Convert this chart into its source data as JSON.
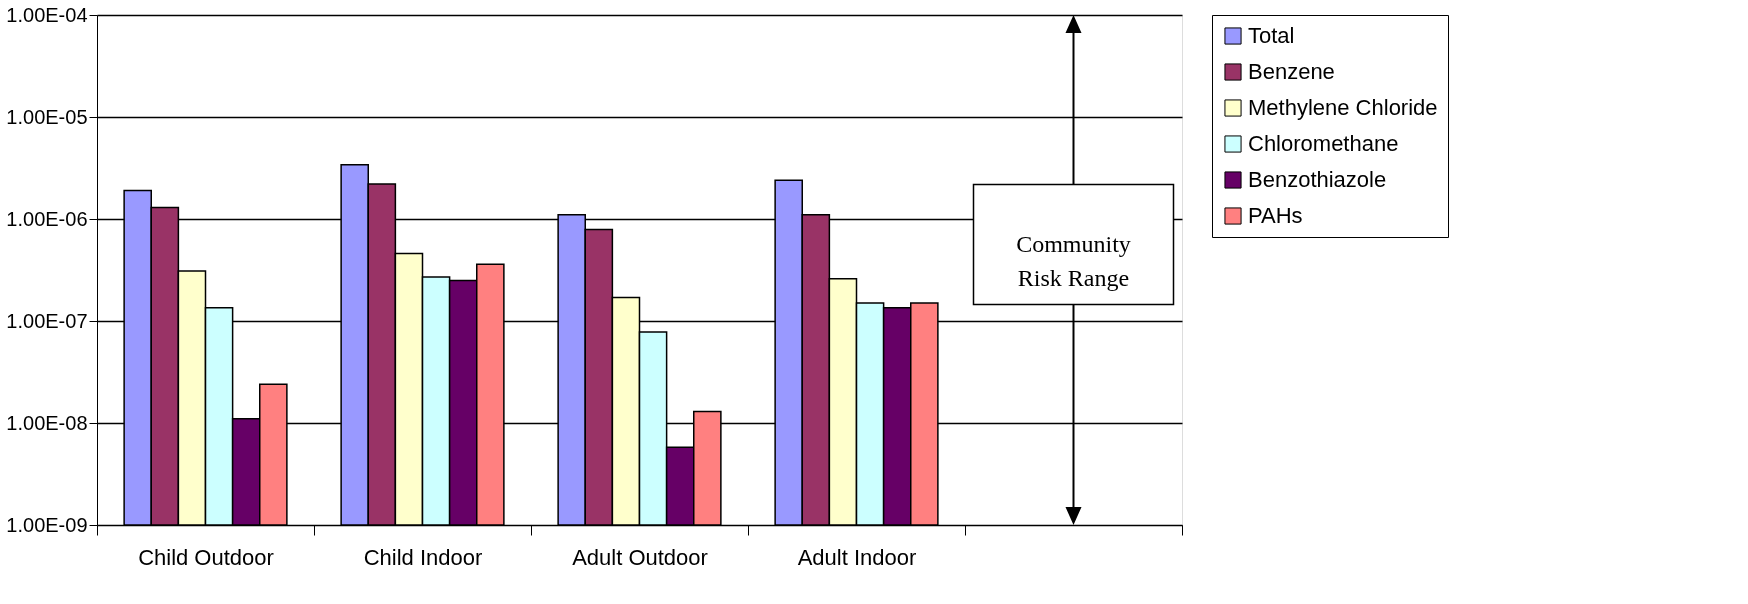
{
  "chart_data": {
    "type": "bar",
    "categories": [
      "Child Outdoor",
      "Child Indoor",
      "Adult Outdoor",
      "Adult Indoor",
      null
    ],
    "series": [
      {
        "name": "Total",
        "color": "#9999ff",
        "values": [
          1.9e-06,
          3.4e-06,
          1.1e-06,
          2.4e-06,
          null
        ]
      },
      {
        "name": "Benzene",
        "color": "#993366",
        "values": [
          1.3e-06,
          2.2e-06,
          7.9e-07,
          1.1e-06,
          null
        ]
      },
      {
        "name": "Methylene Chloride",
        "color": "#ffffcc",
        "values": [
          3.1e-07,
          4.6e-07,
          1.7e-07,
          2.6e-07,
          null
        ]
      },
      {
        "name": "Chloromethane",
        "color": "#ccffff",
        "values": [
          1.35e-07,
          2.7e-07,
          7.8e-08,
          1.5e-07,
          null
        ]
      },
      {
        "name": "Benzothiazole",
        "color": "#660066",
        "values": [
          1.1e-08,
          2.5e-07,
          5.8e-09,
          1.35e-07,
          null
        ]
      },
      {
        "name": "PAHs",
        "color": "#ff8080",
        "values": [
          2.4e-08,
          3.6e-07,
          1.3e-08,
          1.5e-07,
          null
        ]
      }
    ],
    "log": "y",
    "ylim": [
      1e-09,
      0.0001
    ],
    "yticks": [
      {
        "value": 1e-09,
        "label": "1.00E-09"
      },
      {
        "value": 1e-08,
        "label": "1.00E-08"
      },
      {
        "value": 1e-07,
        "label": "1.00E-07"
      },
      {
        "value": 1e-06,
        "label": "1.00E-06"
      },
      {
        "value": 1e-05,
        "label": "1.00E-05"
      },
      {
        "value": 0.0001,
        "label": "1.00E-04"
      }
    ],
    "grid": "y",
    "legend": "right",
    "annotations": [
      "Community Risk Range"
    ]
  }
}
